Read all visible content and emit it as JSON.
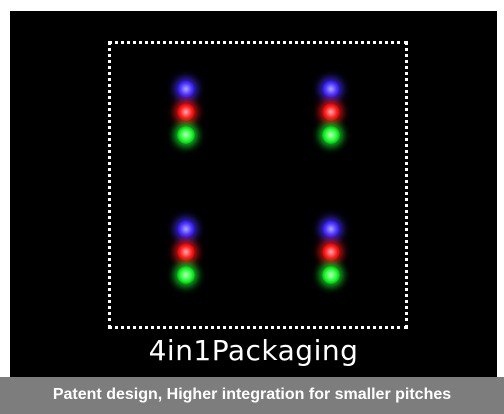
{
  "image": {
    "title": "4in1Packaging",
    "caption": "Patent design, Higher integration for smaller pitches"
  },
  "pixel_groups": [
    {
      "id": 1,
      "leds": [
        "blue",
        "red",
        "green"
      ]
    },
    {
      "id": 2,
      "leds": [
        "blue",
        "red",
        "green"
      ]
    },
    {
      "id": 3,
      "leds": [
        "blue",
        "red",
        "green"
      ]
    },
    {
      "id": 4,
      "leds": [
        "blue",
        "red",
        "green"
      ]
    }
  ],
  "colors": {
    "background": "#000000",
    "frame": "#ffffff",
    "caption_bar": "#7d7d7d",
    "led_blue": "#4a36ff",
    "led_red": "#ff2020",
    "led_green": "#20ff30"
  }
}
